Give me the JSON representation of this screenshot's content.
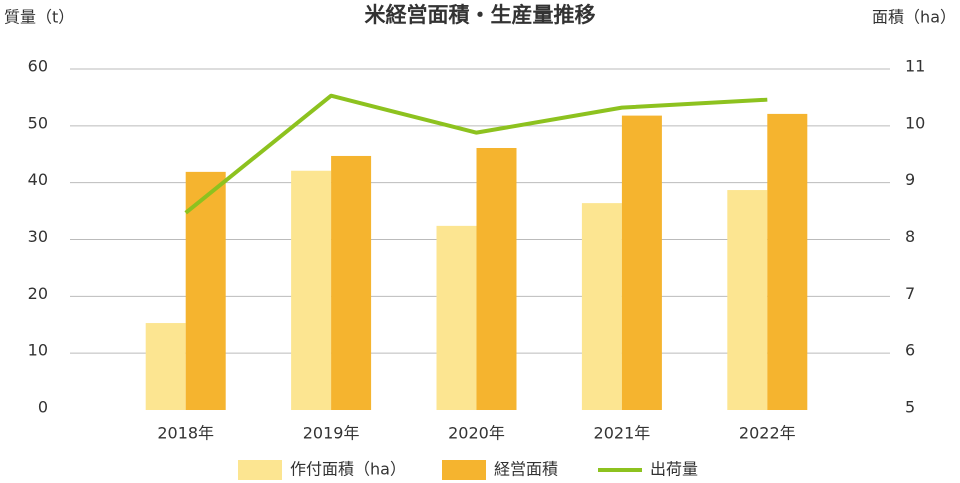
{
  "chart_data": {
    "type": "bar_line",
    "title": "米経営面積・生産量推移",
    "y_label": "質量（t）",
    "y2_label": "面積（ha）",
    "categories": [
      "2018年",
      "2019年",
      "2020年",
      "2021年",
      "2022年"
    ],
    "series": [
      {
        "name": "作付面積（ha）",
        "color": "#fce591",
        "type": "bar",
        "axis": "y2",
        "values": [
          6.53,
          9.21,
          8.24,
          8.64,
          8.87
        ]
      },
      {
        "name": "経営面積",
        "color": "#f5b42f",
        "type": "bar",
        "axis": "y2",
        "values": [
          9.19,
          9.47,
          9.61,
          10.18,
          10.21
        ]
      },
      {
        "name": "出荷量",
        "color": "#8dc21f",
        "type": "line",
        "axis": "y",
        "values": [
          34.7,
          55.3,
          48.8,
          53.2,
          54.6
        ]
      }
    ],
    "ylim": [
      0,
      60
    ],
    "yticks": [
      0,
      10,
      20,
      30,
      40,
      50,
      60
    ],
    "y2lim": [
      5,
      11
    ],
    "y2ticks": [
      5,
      6,
      7,
      8,
      9,
      10,
      11
    ],
    "grid": true,
    "legend": "bottom"
  }
}
